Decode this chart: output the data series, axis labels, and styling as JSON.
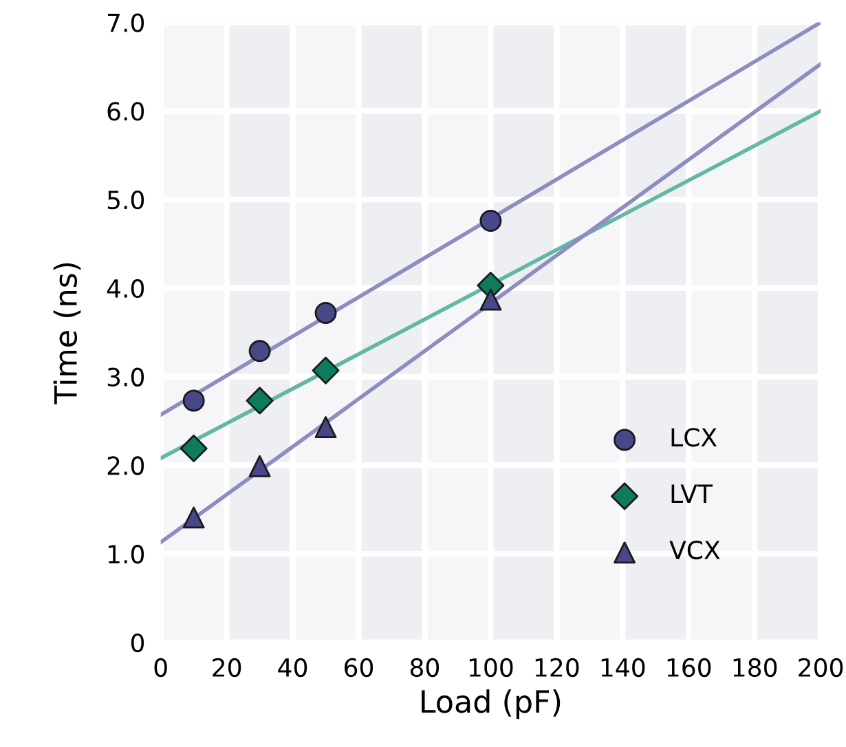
{
  "chart_data": {
    "type": "scatter",
    "xlabel": "Load (pF)",
    "ylabel": "Time (ns)",
    "xlim": [
      0,
      200
    ],
    "xticks": [
      0,
      20,
      40,
      60,
      80,
      100,
      120,
      140,
      160,
      180,
      200
    ],
    "ylim": [
      0,
      7.0
    ],
    "yticks": [
      0,
      {
        "value": 1,
        "label": "1.0"
      },
      {
        "value": 2,
        "label": "2.0"
      },
      {
        "value": 3,
        "label": "3.0"
      },
      {
        "value": 4,
        "label": "4.0"
      },
      {
        "value": 5,
        "label": "5.0"
      },
      {
        "value": 6,
        "label": "6.0"
      },
      {
        "value": 7,
        "label": "7.0"
      }
    ],
    "grid": true,
    "legend": "bottom right",
    "bands": [
      {
        "axis": "x",
        "from": 20,
        "to": 40,
        "color": "#eeeff2"
      },
      {
        "axis": "x",
        "from": 60,
        "to": 80,
        "color": "#eeeff2"
      },
      {
        "axis": "x",
        "from": 100,
        "to": 120,
        "color": "#eeeff2"
      },
      {
        "axis": "x",
        "from": 140,
        "to": 160,
        "color": "#eeeff2"
      },
      {
        "axis": "x",
        "from": 180,
        "to": 200,
        "color": "#eeeff2"
      }
    ],
    "series": [
      {
        "type": "line",
        "color": "#8e8cc0",
        "x": [
          0,
          200
        ],
        "values": [
          2.57,
          7.0
        ],
        "marker": "none"
      },
      {
        "type": "line",
        "color": "#62b8a2",
        "x": [
          0,
          200
        ],
        "values": [
          2.08,
          6.0
        ],
        "marker": "none"
      },
      {
        "type": "line",
        "color": "#8e8cc0",
        "x": [
          0,
          200
        ],
        "values": [
          1.13,
          6.53
        ],
        "marker": "none"
      },
      {
        "name": "LCX",
        "color": "#47478a",
        "x": [
          10,
          30,
          50,
          100
        ],
        "values": [
          2.73,
          3.29,
          3.72,
          4.76
        ],
        "marker": "circle"
      },
      {
        "name": "LVT",
        "color": "#0e7b5e",
        "x": [
          10,
          30,
          50,
          100
        ],
        "values": [
          2.19,
          2.73,
          3.07,
          4.03
        ],
        "marker": "diamond"
      },
      {
        "name": "VCX",
        "color": "#47478a",
        "x": [
          10,
          30,
          50,
          100
        ],
        "values": [
          1.41,
          1.99,
          2.43,
          3.87
        ],
        "marker": "triangle"
      }
    ]
  }
}
